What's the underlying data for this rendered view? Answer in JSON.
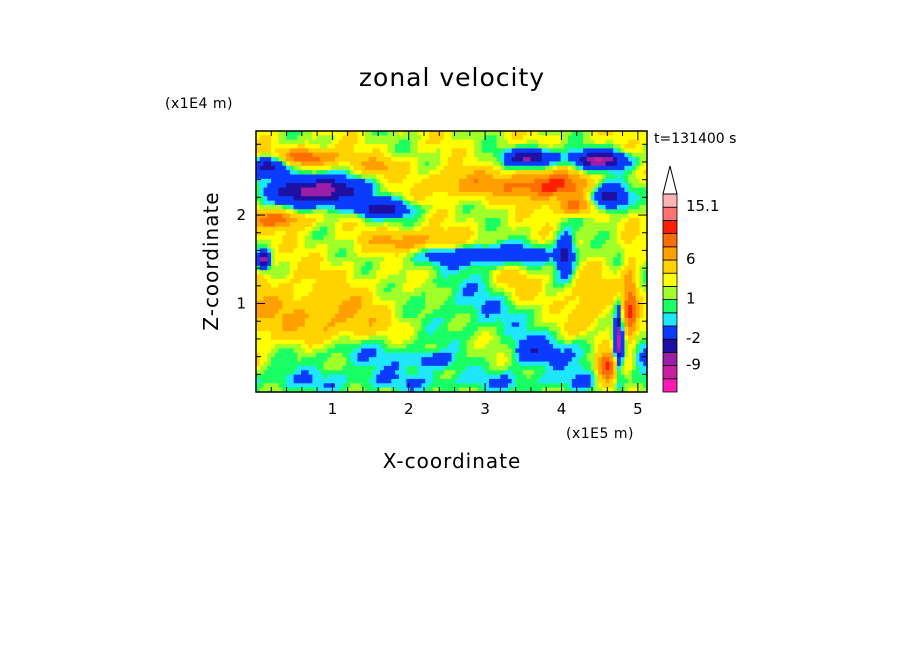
{
  "chart_data": {
    "type": "heatmap",
    "title": "zonal velocity",
    "xlabel": "X-coordinate",
    "ylabel": "Z-coordinate",
    "x_unit": "(x1E5 m)",
    "y_unit": "(x1E4 m)",
    "time_label": "t=131400 s",
    "xlim": [
      0.0,
      5.12
    ],
    "ylim": [
      0.0,
      2.95
    ],
    "x_ticks": [
      "1",
      "2",
      "3",
      "4",
      "5"
    ],
    "x_tick_values": [
      1,
      2,
      3,
      4,
      5
    ],
    "y_ticks": [
      "1",
      "2"
    ],
    "y_tick_values": [
      1,
      2
    ],
    "colorbar": {
      "colors": [
        "#ff19b4",
        "#c81ea0",
        "#9b1ea8",
        "#1e10a0",
        "#0a3cff",
        "#1ee6ff",
        "#19ff64",
        "#a0ff28",
        "#ffff00",
        "#ffd200",
        "#ffa000",
        "#ff6e00",
        "#ff1e00",
        "#ff7373",
        "#ffb4b4",
        "#ffffff"
      ],
      "labels": [
        "15.1",
        "6",
        "1",
        "-2",
        "-9"
      ],
      "label_values": [
        15.1,
        6,
        1,
        -2,
        -9
      ],
      "extend": "max"
    }
  }
}
